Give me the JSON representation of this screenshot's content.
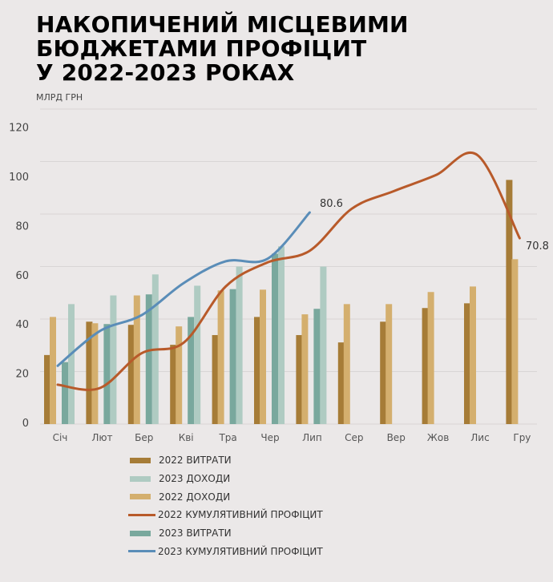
{
  "title_lines": [
    "НАКОПИЧЕНИЙ МІСЦЕВИМИ",
    "БЮДЖЕТАМИ ПРОФІЦИТ",
    "У 2022-2023 РОКАХ"
  ],
  "unit": "МЛРД ГРН",
  "colors": {
    "background": "#ebe8e8",
    "exp2022": "#a67c37",
    "inc2022": "#d4af6e",
    "exp2023": "#79a89d",
    "inc2023": "#afcbc2",
    "cum2022": "#b85a2a",
    "cum2023": "#5a8db8"
  },
  "chart_data": {
    "type": "bar",
    "title": "НАКОПИЧЕНИЙ МІСЦЕВИМИ БЮДЖЕТАМИ ПРОФІЦИТ У 2022-2023 РОКАХ",
    "ylabel": "МЛРД ГРН",
    "ylim": [
      0,
      120
    ],
    "yticks": [
      0,
      20,
      40,
      60,
      80,
      100,
      120
    ],
    "grid": true,
    "legend_placement": "bottom",
    "categories": [
      "Січ",
      "Лют",
      "Бер",
      "Кві",
      "Тра",
      "Чер",
      "Лип",
      "Сер",
      "Вер",
      "Жов",
      "Лис",
      "Гру"
    ],
    "series": [
      {
        "name": "2022 ВИТРАТИ",
        "type": "bar",
        "color": "#a67c37",
        "values": [
          26.3,
          39,
          37.8,
          30.2,
          33.9,
          40.8,
          33.9,
          31.1,
          39,
          44.2,
          46,
          93
        ]
      },
      {
        "name": "2022 ДОХОДИ",
        "type": "bar",
        "color": "#d4af6e",
        "values": [
          40.8,
          38.4,
          49,
          37.2,
          50.9,
          51.2,
          41.8,
          45.7,
          45.7,
          50.3,
          52.4,
          62.8
        ]
      },
      {
        "name": "2023 ВИТРАТИ",
        "type": "bar",
        "color": "#79a89d",
        "values": [
          23.6,
          38.1,
          49.4,
          40.8,
          51.4,
          64.9,
          43.9,
          null,
          null,
          null,
          null,
          null
        ]
      },
      {
        "name": "2023 ДОХОДИ",
        "type": "bar",
        "color": "#afcbc2",
        "values": [
          45.7,
          49,
          57,
          52.7,
          60,
          67.7,
          60,
          null,
          null,
          null,
          null,
          null
        ]
      },
      {
        "name": "2022 КУМУЛЯТИВНИЙ ПРОФІЦИТ",
        "type": "line",
        "color": "#b85a2a",
        "values": [
          15,
          13.7,
          27,
          31,
          52.4,
          61.6,
          66,
          82,
          88.7,
          94.8,
          102.4,
          70.8
        ]
      },
      {
        "name": "2023 КУМУЛЯТИВНИЙ ПРОФІЦИТ",
        "type": "line",
        "color": "#5a8db8",
        "values": [
          22.2,
          35.4,
          41.5,
          53.7,
          62,
          63,
          80.6,
          null,
          null,
          null,
          null,
          null
        ]
      }
    ],
    "annotations": [
      "80.6",
      "70.8"
    ]
  },
  "legend_order": [
    0,
    3,
    1,
    4,
    2,
    5
  ]
}
